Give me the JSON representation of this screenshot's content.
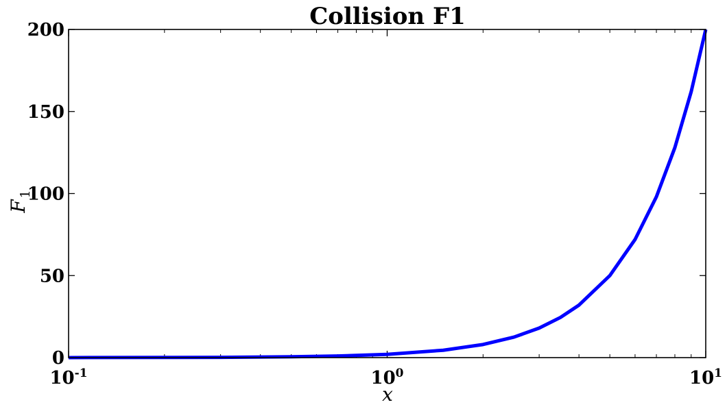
{
  "chart_data": {
    "type": "line",
    "title": "Collision F1",
    "xlabel": "x",
    "ylabel": "F",
    "ylabel_subscript": "1",
    "xscale": "log",
    "xlim": [
      0.1,
      10
    ],
    "ylim": [
      0,
      200
    ],
    "xticks": [
      {
        "base": "10",
        "exp": "-1"
      },
      {
        "base": "10",
        "exp": "0"
      },
      {
        "base": "10",
        "exp": "1"
      }
    ],
    "yticks": [
      "0",
      "50",
      "100",
      "150",
      "200"
    ],
    "grid": false,
    "legend": "none",
    "series": [
      {
        "color": "#0000ff",
        "x": [
          0.1,
          0.2,
          0.3,
          0.5,
          0.7,
          1.0,
          1.5,
          2.0,
          2.5,
          3.0,
          3.5,
          4.0,
          5.0,
          6.0,
          7.0,
          8.0,
          9.0,
          10.0
        ],
        "y": [
          0.02,
          0.08,
          0.18,
          0.5,
          0.98,
          2.0,
          4.5,
          8.0,
          12.5,
          18.0,
          24.5,
          32.0,
          50.0,
          72.0,
          98.0,
          128.0,
          162.0,
          200.0
        ]
      }
    ]
  }
}
